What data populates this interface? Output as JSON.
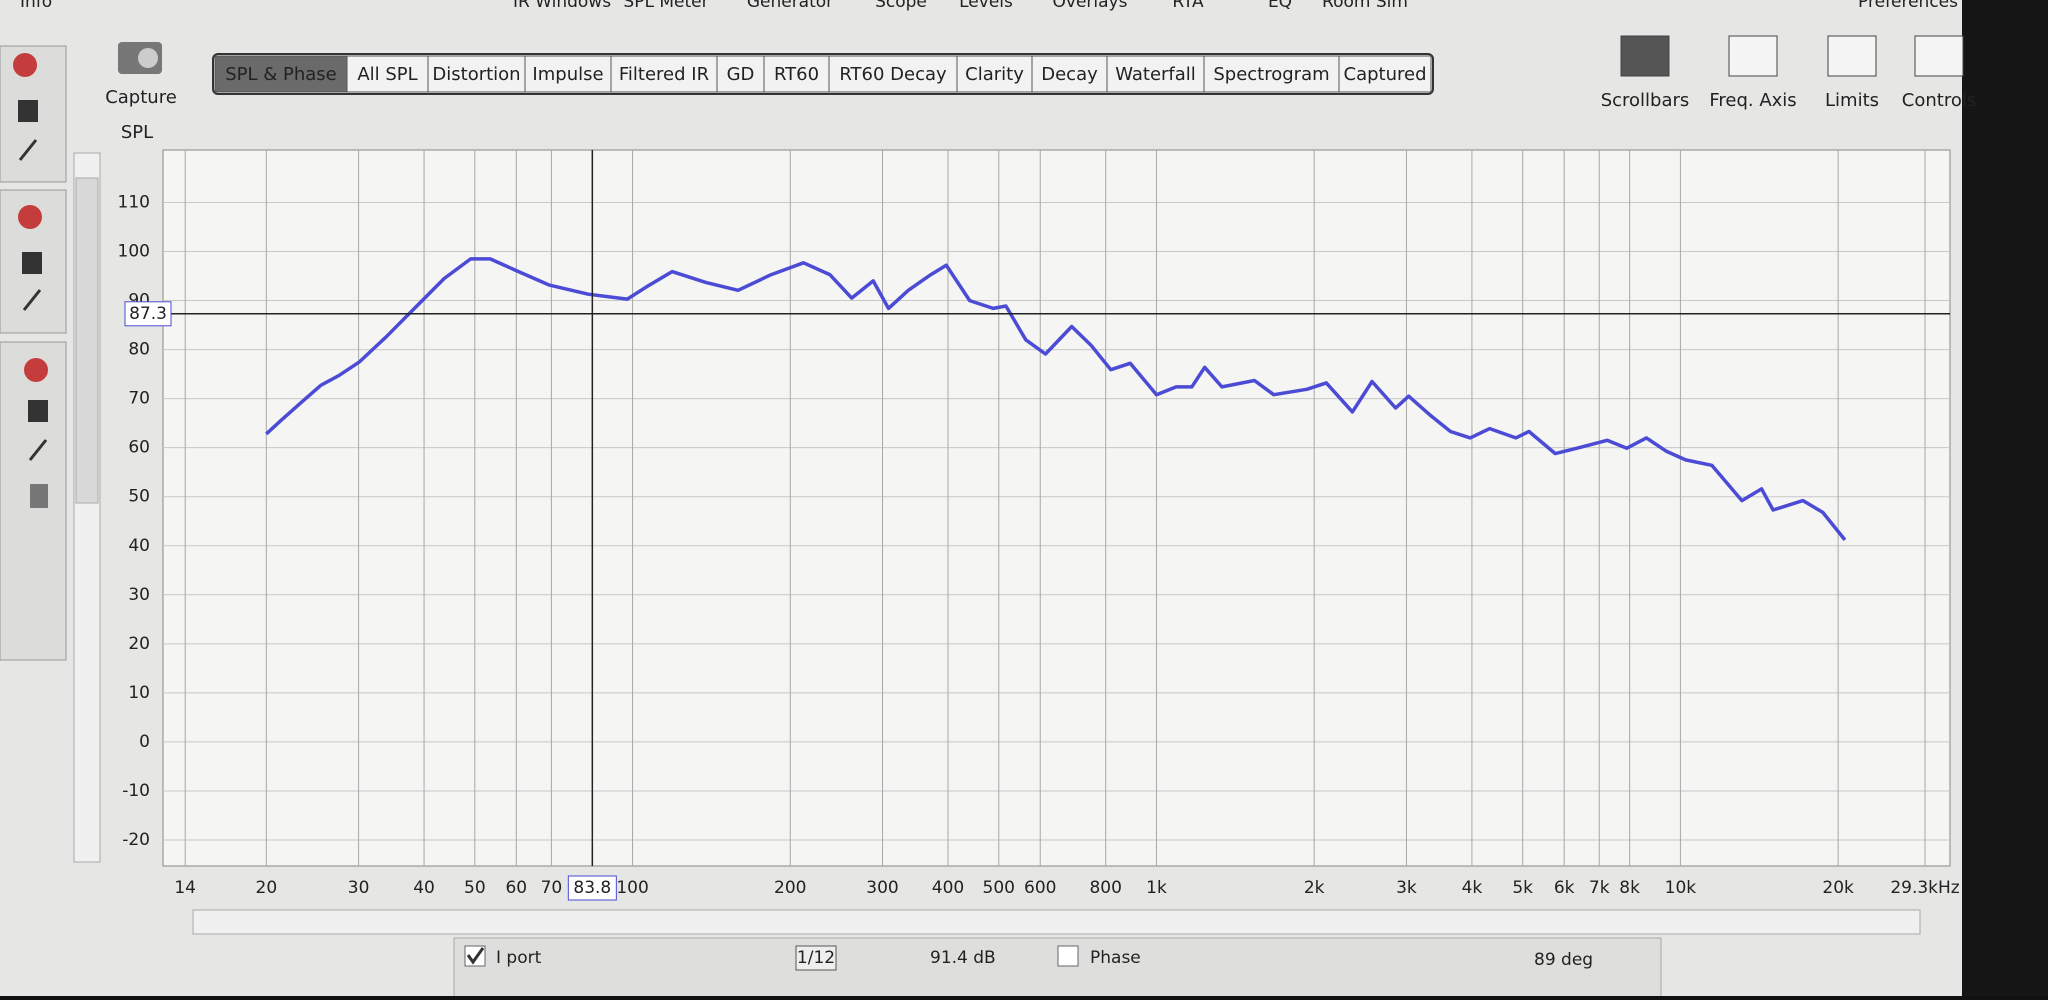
{
  "menu": {
    "left": "Info",
    "items": [
      "IR Windows",
      "SPL Meter",
      "Generator",
      "Scope",
      "Levels",
      "Overlays",
      "RTA",
      "EQ",
      "Room Sim"
    ],
    "right": "Preferences"
  },
  "capture": "Capture",
  "tabs": [
    "SPL & Phase",
    "All SPL",
    "Distortion",
    "Impulse",
    "Filtered IR",
    "GD",
    "RT60",
    "RT60 Decay",
    "Clarity",
    "Decay",
    "Waterfall",
    "Spectrogram",
    "Captured"
  ],
  "tools": [
    "Scrollbars",
    "Freq. Axis",
    "Limits",
    "Controls"
  ],
  "chart_data": {
    "type": "line",
    "y_axis_label": "SPL",
    "x_log": true,
    "x": [
      20,
      21.3,
      23.3,
      25.4,
      27.6,
      30.1,
      33.8,
      39,
      43.7,
      49.1,
      53.5,
      60,
      69.2,
      82.3,
      97.7,
      106,
      119,
      138,
      159,
      184,
      212,
      238,
      262,
      288,
      308,
      336,
      371,
      397,
      440,
      488,
      516,
      563,
      614,
      689,
      750,
      818,
      891,
      1000,
      1090,
      1168,
      1236,
      1333,
      1538,
      1675,
      1936,
      2109,
      2366,
      2578,
      2860,
      3030,
      3340,
      3640,
      3970,
      4325,
      4850,
      5140,
      5770,
      6460,
      7250,
      7900,
      8610,
      9390,
      10230,
      11480,
      13100,
      14290,
      15030,
      17140,
      18700,
      20600
    ],
    "series": [
      {
        "name": "I port",
        "color": "#4b4bd6",
        "values": [
          62.8,
          65.5,
          69.2,
          72.7,
          74.8,
          77.5,
          82.5,
          89.2,
          94.5,
          98.5,
          98.5,
          96.1,
          93.2,
          91.3,
          90.3,
          92.7,
          95.9,
          93.7,
          92.1,
          95.3,
          97.7,
          95.3,
          90.5,
          94,
          88.4,
          92.1,
          95.3,
          97.2,
          90,
          88.4,
          88.9,
          82,
          79.1,
          84.7,
          80.9,
          75.9,
          77.2,
          70.8,
          72.4,
          72.4,
          76.4,
          72.4,
          73.7,
          70.8,
          71.9,
          73.2,
          67.3,
          73.5,
          68.1,
          70.5,
          66.5,
          63.3,
          62,
          63.9,
          62,
          63.3,
          58.8,
          60.1,
          61.5,
          59.9,
          62,
          59.3,
          57.5,
          56.4,
          49.2,
          51.6,
          47.3,
          49.2,
          46.8,
          41.2
        ]
      }
    ],
    "xlim": [
      12.7,
      32700
    ],
    "ylim": [
      -25.3,
      120.7
    ],
    "xticks": [
      14,
      20,
      30,
      40,
      50,
      60,
      70,
      100,
      200,
      300,
      400,
      500,
      600,
      800,
      {
        "value": 1000,
        "label": "1k"
      },
      {
        "value": 2000,
        "label": "2k"
      },
      {
        "value": 3000,
        "label": "3k"
      },
      {
        "value": 4000,
        "label": "4k"
      },
      {
        "value": 5000,
        "label": "5k"
      },
      {
        "value": 6000,
        "label": "6k"
      },
      {
        "value": 7000,
        "label": "7k"
      },
      {
        "value": 8000,
        "label": "8k"
      },
      {
        "value": 10000,
        "label": "10k"
      },
      {
        "value": 20000,
        "label": "20k"
      },
      {
        "value": 29300,
        "label": "29.3kHz"
      }
    ],
    "yticks": [
      -20,
      -10,
      0,
      10,
      20,
      30,
      40,
      50,
      60,
      70,
      80,
      90,
      100,
      110
    ],
    "grid": true,
    "cursor": {
      "x": 83.8,
      "y": 87.3
    }
  },
  "footer": {
    "smoothing": "1/12",
    "level": "91.4 dB",
    "phase": "Phase",
    "phase_value": "89 deg"
  }
}
